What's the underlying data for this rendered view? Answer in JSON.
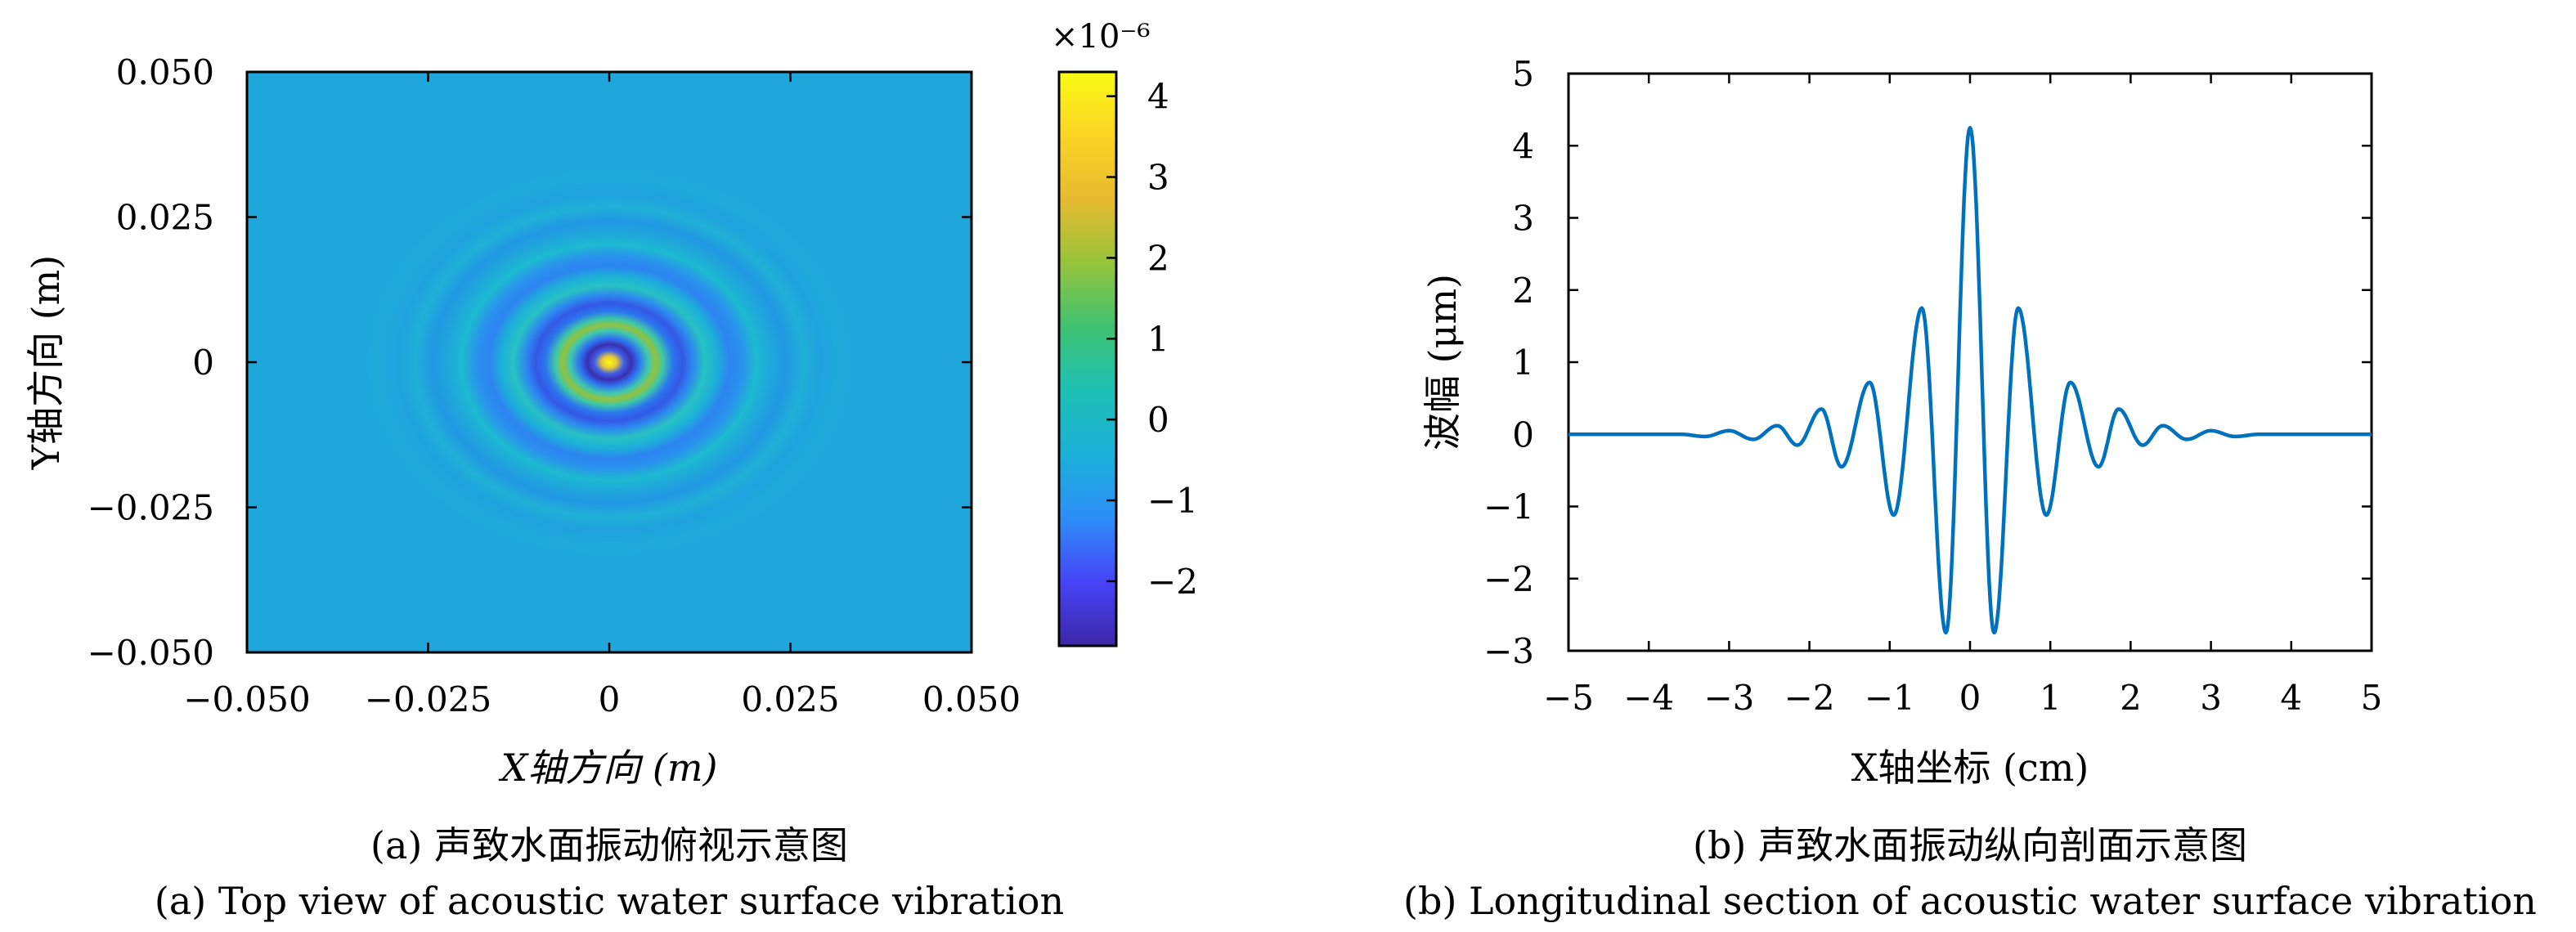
{
  "chart_data": [
    {
      "type": "heatmap",
      "title": "",
      "xlabel": "X轴方向 (m)",
      "ylabel": "Y轴方向 (m)",
      "xlim": [
        -0.05,
        0.05
      ],
      "ylim": [
        -0.05,
        0.05
      ],
      "x_ticks": [
        -0.05,
        -0.025,
        0,
        0.025,
        0.05
      ],
      "x_tick_labels": [
        "−0.050",
        "−0.025",
        "0",
        "0.025",
        "0.050"
      ],
      "y_ticks": [
        0.05,
        0.025,
        0,
        -0.025,
        -0.05
      ],
      "y_tick_labels": [
        "0.050",
        "0.025",
        "0",
        "−0.025",
        "−0.050"
      ],
      "colorbar": {
        "range": [
          -2.8,
          4.3
        ],
        "ticks": [
          4,
          3,
          2,
          1,
          0,
          -1,
          -2
        ],
        "tick_labels": [
          "4",
          "3",
          "2",
          "1",
          "0",
          "−1",
          "−2"
        ],
        "multiplier_label": "×10⁻⁶",
        "colormap": [
          "#3e26a8",
          "#4743f7",
          "#2d8ef8",
          "#1cb0d9",
          "#1ec0b4",
          "#3ec272",
          "#96c43b",
          "#e6ba30",
          "#fbd425",
          "#f9fb15"
        ]
      },
      "pattern": "concentric ripples centred at (0, 0), peak 4.3e-6 at centre",
      "caption_cn": "(a) 声致水面振动俯视示意图",
      "caption_en": "(a) Top view of acoustic water surface vibration"
    },
    {
      "type": "line",
      "title": "",
      "xlabel": "X轴坐标 (cm)",
      "ylabel": "波幅 (μm)",
      "xlim": [
        -5,
        5
      ],
      "ylim": [
        -3,
        5
      ],
      "x_ticks": [
        -5,
        -4,
        -3,
        -2,
        -1,
        0,
        1,
        2,
        3,
        4,
        5
      ],
      "x_tick_labels": [
        "−5",
        "−4",
        "−3",
        "−2",
        "−1",
        "0",
        "1",
        "2",
        "3",
        "4",
        "5"
      ],
      "y_ticks": [
        5,
        4,
        3,
        2,
        1,
        0,
        -1,
        -2,
        -3
      ],
      "y_tick_labels": [
        "5",
        "4",
        "3",
        "2",
        "1",
        "0",
        "−1",
        "−2",
        "−3"
      ],
      "color": "#0072bd",
      "series": [
        {
          "name": "波幅",
          "x": [
            -5,
            -4.5,
            -4,
            -3.6,
            -3.3,
            -3.0,
            -2.7,
            -2.4,
            -2.15,
            -1.85,
            -1.6,
            -1.25,
            -0.95,
            -0.6,
            -0.3,
            0,
            0.3,
            0.6,
            0.95,
            1.25,
            1.6,
            1.85,
            2.15,
            2.4,
            2.7,
            3.0,
            3.3,
            3.6,
            4,
            4.5,
            5
          ],
          "values": [
            0,
            0,
            0,
            0,
            -0.03,
            0.05,
            -0.07,
            0.12,
            -0.15,
            0.35,
            -0.45,
            0.72,
            -1.12,
            1.75,
            -2.75,
            4.25,
            -2.75,
            1.75,
            -1.12,
            0.72,
            -0.45,
            0.35,
            -0.15,
            0.12,
            -0.07,
            0.05,
            -0.03,
            0,
            0,
            0,
            0
          ]
        }
      ],
      "caption_cn": "(b) 声致水面振动纵向剖面示意图",
      "caption_en": "(b) Longitudinal section of acoustic water surface vibration"
    }
  ]
}
